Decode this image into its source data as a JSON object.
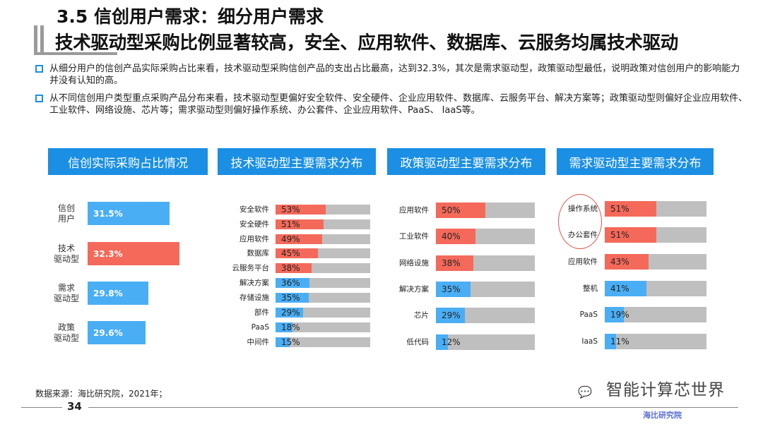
{
  "title": {
    "line1": "3.5 信创用户需求：细分用户需求",
    "line2": "技术驱动型采购比例显著较高，安全、应用软件、数据库、云服务均属技术驱动"
  },
  "bullets": [
    "从细分用户的信创产品实际采购占比来看，技术驱动型采购信创产品的支出占比最高，达到32.3%，其次是需求驱动型，政策驱动型最低，说明政策对信创用户的影响能力并没有认知的高。",
    "从不同信创用户类型重点采购产品分布来看，技术驱动型更偏好安全软件、安全硬件、企业应用软件、数据库、云服务平台、解决方案等；政策驱动型则偏好企业应用软件、工业软件、网络设施、芯片等；需求驱动型则偏好操作系统、办公套件、企业应用软件、PaaS、 IaaS等。"
  ],
  "colors": {
    "accent": "#1a8fe3",
    "red": "#f4695a",
    "blue": "#4aaef5",
    "gray": "#bfbfbf"
  },
  "chart_data": [
    {
      "type": "bar",
      "title": "信创实际采购占比情况",
      "categories": [
        "信创\n用户",
        "技术\n驱动型",
        "需求\n驱动型",
        "政策\n驱动型"
      ],
      "values": [
        31.5,
        32.3,
        29.8,
        29.6
      ],
      "labels": [
        "31.5%",
        "32.3%",
        "29.8%",
        "29.6%"
      ],
      "highlight": [
        1
      ]
    },
    {
      "type": "bar",
      "title": "技术驱动型主要需求分布",
      "categories": [
        "安全软件",
        "安全硬件",
        "应用软件",
        "数据库",
        "云服务平台",
        "解决方案",
        "存储设施",
        "部件",
        "PaaS",
        "中间件"
      ],
      "values": [
        53,
        51,
        49,
        45,
        38,
        36,
        35,
        29,
        18,
        15
      ],
      "red_count": 5
    },
    {
      "type": "bar",
      "title": "政策驱动型主要需求分布",
      "categories": [
        "应用软件",
        "工业软件",
        "网络设施",
        "解决方案",
        "芯片",
        "低代码"
      ],
      "values": [
        50,
        40,
        38,
        35,
        29,
        12
      ],
      "red_count": 3
    },
    {
      "type": "bar",
      "title": "需求驱动型主要需求分布",
      "categories": [
        "操作系统",
        "办公套件",
        "应用软件",
        "整机",
        "PaaS",
        "IaaS"
      ],
      "values": [
        51,
        51,
        43,
        41,
        19,
        11
      ],
      "red_count": 3,
      "circled": [
        "操作系统",
        "办公套件"
      ]
    }
  ],
  "footer": {
    "source": "数据来源：海比研究院，2021年；",
    "page": "34",
    "brand": "智能计算芯世界",
    "watermark": "海比研究院"
  }
}
